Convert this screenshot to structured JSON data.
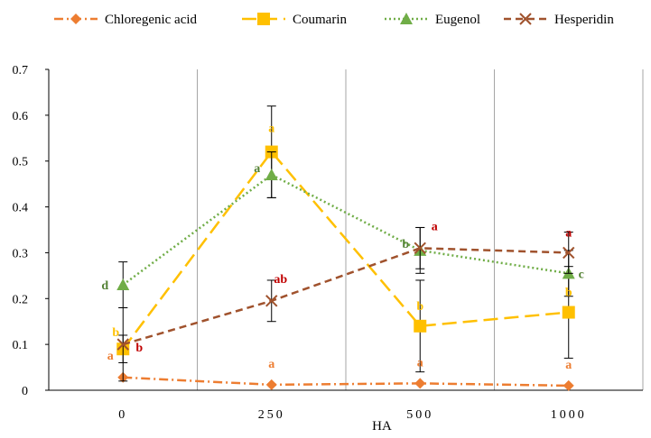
{
  "chart_data": {
    "type": "line",
    "categories": [
      "0",
      "250",
      "500",
      "1000"
    ],
    "xlabel": "HA",
    "ylabel": "",
    "ylim": [
      0,
      0.7
    ],
    "yticks": [
      "0",
      "0.1",
      "0.2",
      "0.3",
      "0.4",
      "0.5",
      "0.6",
      "0.7"
    ],
    "grid": "vertical",
    "legend_position": "top",
    "series": [
      {
        "name": "Chloregenic acid",
        "color": "#ED7D31",
        "marker": "diamond",
        "line_style": "dash-dot",
        "values": [
          0.028,
          0.012,
          0.015,
          0.01
        ],
        "errors": [
          0.0,
          0.0,
          0.0,
          0.0
        ],
        "labels": [
          "a",
          "a",
          "a",
          "a"
        ]
      },
      {
        "name": "Coumarin",
        "color": "#FFC000",
        "marker": "square",
        "line_style": "long-dash",
        "values": [
          0.09,
          0.52,
          0.14,
          0.17
        ],
        "errors": [
          0.03,
          0.1,
          0.1,
          0.1
        ],
        "labels": [
          "b",
          "a",
          "b",
          "b"
        ]
      },
      {
        "name": "Eugenol",
        "color": "#70AD47",
        "marker": "triangle",
        "line_style": "dotted",
        "values": [
          0.23,
          0.47,
          0.305,
          0.255
        ],
        "errors": [
          0.05,
          0.05,
          0.05,
          0.05
        ],
        "labels": [
          "d",
          "a",
          "b",
          "c"
        ]
      },
      {
        "name": "Hesperidin",
        "color": "#A0522D",
        "marker": "x",
        "line_style": "dashed",
        "values": [
          0.1,
          0.195,
          0.31,
          0.3
        ],
        "errors": [
          0.08,
          0.045,
          0.045,
          0.045
        ],
        "labels": [
          "b",
          "ab",
          "a",
          "a"
        ]
      }
    ],
    "label_colors": {
      "Chloregenic acid": "#ED7D31",
      "Coumarin": "#FFC000",
      "Eugenol": "#548235",
      "Hesperidin": "#C00000"
    }
  }
}
